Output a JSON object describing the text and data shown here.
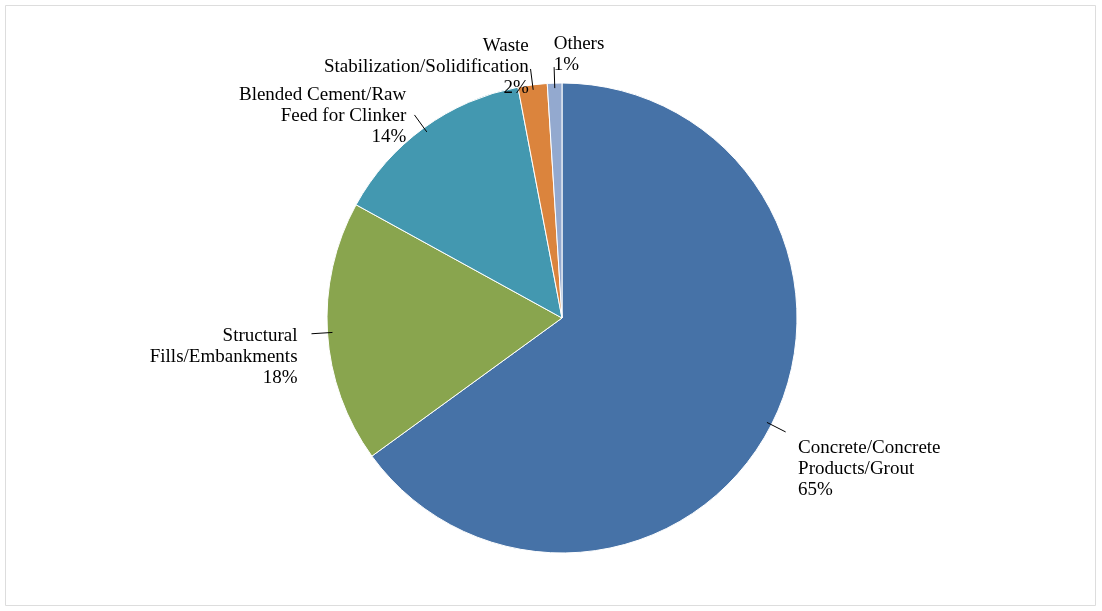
{
  "chart_data": {
    "type": "pie",
    "categories": [
      "Concrete/Concrete Products/Grout",
      "Structural Fills/Embankments",
      "Blended Cement/Raw Feed for Clinker",
      "Waste Stabilization/Solidification",
      "Others"
    ],
    "values": [
      65,
      18,
      14,
      2,
      1
    ],
    "value_labels": [
      "65%",
      "18%",
      "14%",
      "2%",
      "1%"
    ],
    "colors": [
      "#4672a7",
      "#89a54e",
      "#4398b0",
      "#db843d",
      "#93a9cf"
    ],
    "legend": false
  }
}
